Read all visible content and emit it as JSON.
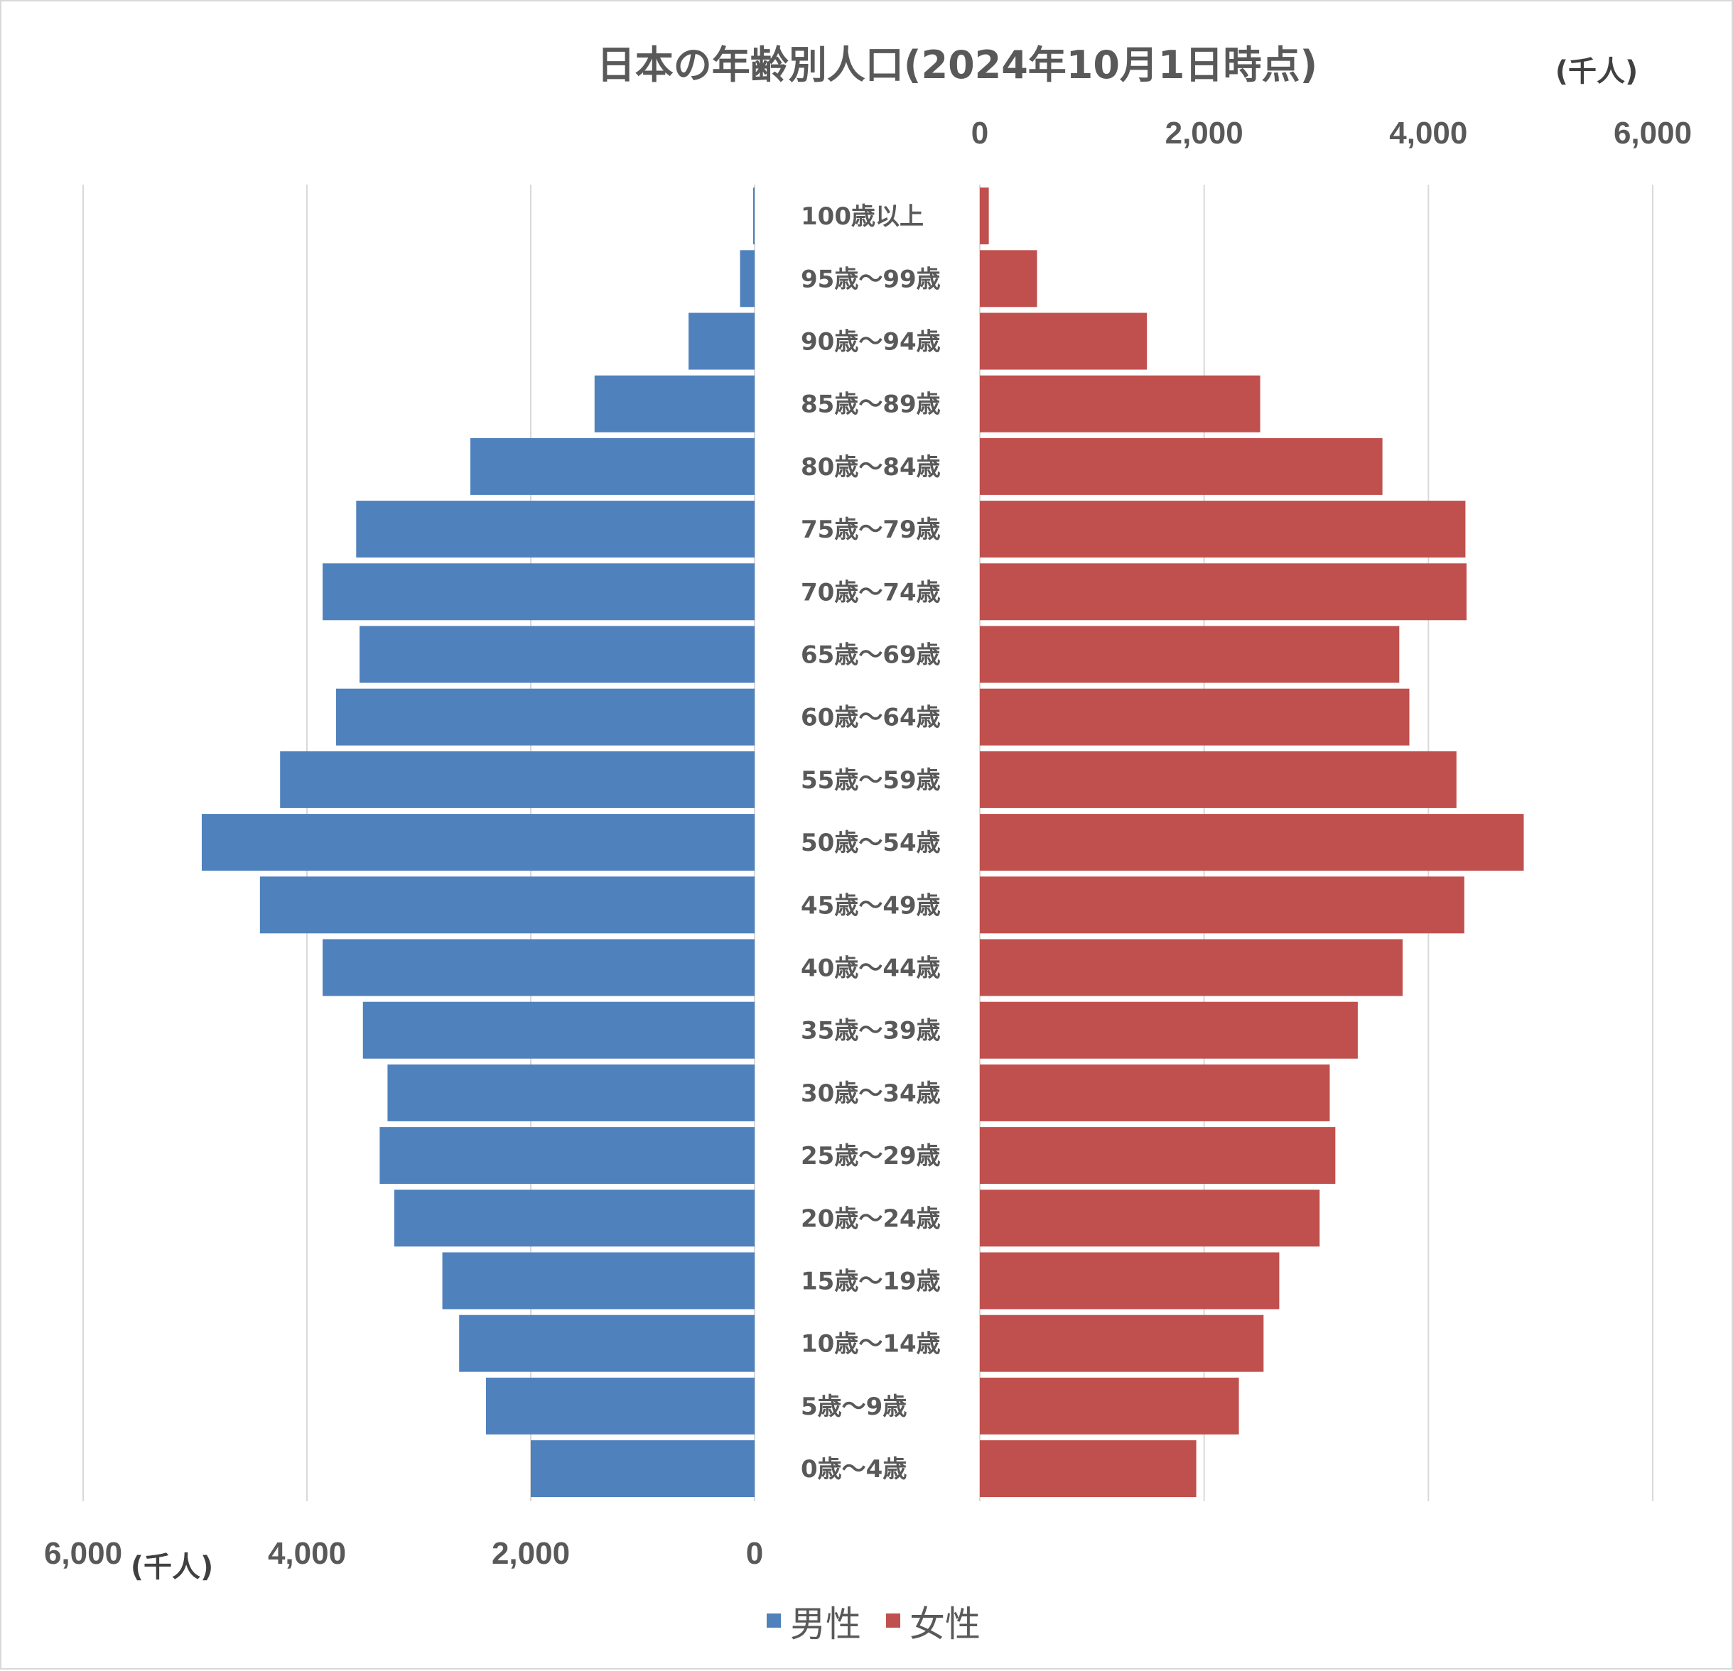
{
  "chart_data": {
    "type": "bar",
    "title": "日本の年齢別人口(2024年10月1日時点)",
    "unit_label": "(千人)",
    "categories": [
      "100歳以上",
      "95歳〜99歳",
      "90歳〜94歳",
      "85歳〜89歳",
      "80歳〜84歳",
      "75歳〜79歳",
      "70歳〜74歳",
      "65歳〜69歳",
      "60歳〜64歳",
      "55歳〜59歳",
      "50歳〜54歳",
      "45歳〜49歳",
      "40歳〜44歳",
      "35歳〜39歳",
      "30歳〜34歳",
      "25歳〜29歳",
      "20歳〜24歳",
      "15歳〜19歳",
      "10歳〜14歳",
      "5歳〜9歳",
      "0歳〜4歳"
    ],
    "series": [
      {
        "name": "男性",
        "color": "#4f81bd",
        "values": [
          13,
          130,
          590,
          1430,
          2540,
          3560,
          3860,
          3530,
          3740,
          4240,
          4940,
          4420,
          3860,
          3500,
          3280,
          3350,
          3220,
          2790,
          2640,
          2400,
          2000
        ]
      },
      {
        "name": "女性",
        "color": "#c0504d",
        "values": [
          80,
          510,
          1490,
          2500,
          3590,
          4330,
          4340,
          3740,
          3830,
          4250,
          4850,
          4320,
          3770,
          3370,
          3120,
          3170,
          3030,
          2670,
          2530,
          2310,
          1930
        ]
      }
    ],
    "xlim": [
      0,
      6000
    ],
    "x_ticks": [
      "0",
      "2,000",
      "4,000",
      "6,000"
    ],
    "male_axis_ticks": [
      "6,000",
      "4,000",
      "2,000",
      "0"
    ],
    "female_axis_ticks": [
      "0",
      "2,000",
      "4,000",
      "6,000"
    ],
    "grid": true,
    "legend_position": "bottom"
  }
}
